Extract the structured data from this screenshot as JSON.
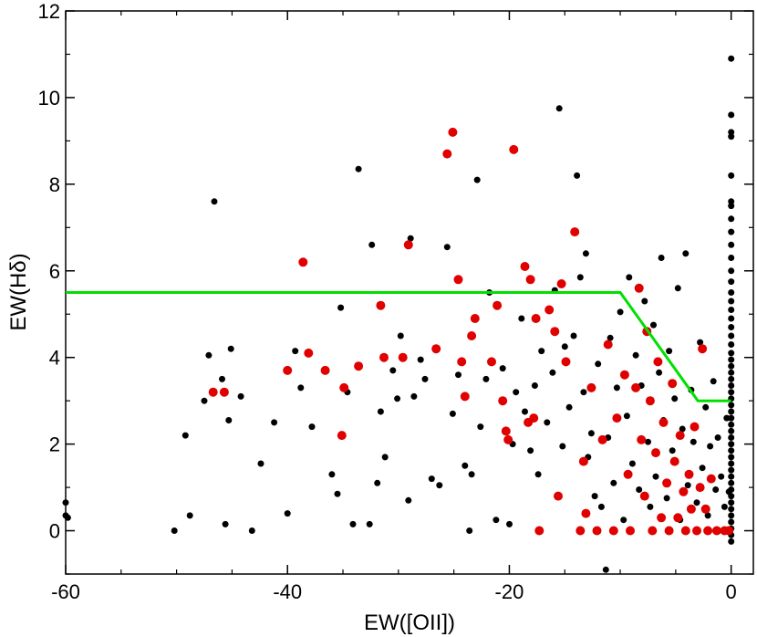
{
  "chart_data": {
    "type": "scatter",
    "xlabel": "EW([OII])",
    "ylabel": "EW(Hδ)",
    "xlim": [
      -60,
      2
    ],
    "ylim": [
      -1,
      12
    ],
    "x_ticks": [
      -60,
      -40,
      -20,
      0
    ],
    "x_tick_labels": [
      "-60",
      "-40",
      "-20",
      "0"
    ],
    "y_ticks": [
      0,
      2,
      4,
      6,
      8,
      10,
      12
    ],
    "y_tick_labels": [
      "0",
      "2",
      "4",
      "6",
      "8",
      "10",
      "12"
    ],
    "x_minor_step": 5,
    "y_minor_step": 1,
    "grid": false,
    "legend": "none",
    "colors": {
      "black_series": "#000000",
      "red_series": "#e00000",
      "boundary_line": "#00e000"
    },
    "boundary_line": [
      [
        -60,
        5.5
      ],
      [
        -10,
        5.5
      ],
      [
        -3,
        3
      ],
      [
        0,
        3
      ]
    ],
    "series": [
      {
        "color": "#000000",
        "marker_size": "small",
        "points": [
          [
            -60,
            0.65
          ],
          [
            -60,
            0.35
          ],
          [
            -59.8,
            0.3
          ],
          [
            -50.2,
            0.0
          ],
          [
            -49.2,
            2.2
          ],
          [
            -48.8,
            0.35
          ],
          [
            -47.5,
            3.0
          ],
          [
            -47.1,
            4.05
          ],
          [
            -46.6,
            7.6
          ],
          [
            -45.9,
            3.5
          ],
          [
            -45.6,
            0.15
          ],
          [
            -45.3,
            2.55
          ],
          [
            -45.1,
            4.2
          ],
          [
            -44.2,
            3.1
          ],
          [
            -43.2,
            0.0
          ],
          [
            -42.4,
            1.55
          ],
          [
            -41.2,
            2.5
          ],
          [
            -40.0,
            0.4
          ],
          [
            -39.3,
            4.15
          ],
          [
            -38.8,
            3.3
          ],
          [
            -37.8,
            2.4
          ],
          [
            -36.0,
            1.3
          ],
          [
            -35.5,
            0.85
          ],
          [
            -35.2,
            5.15
          ],
          [
            -34.6,
            3.2
          ],
          [
            -34.1,
            0.15
          ],
          [
            -33.6,
            8.35
          ],
          [
            -32.6,
            0.15
          ],
          [
            -32.4,
            6.6
          ],
          [
            -31.9,
            1.1
          ],
          [
            -31.6,
            2.75
          ],
          [
            -31.2,
            1.7
          ],
          [
            -30.5,
            3.7
          ],
          [
            -30.1,
            3.05
          ],
          [
            -29.8,
            4.5
          ],
          [
            -29.1,
            0.7
          ],
          [
            -28.9,
            6.75
          ],
          [
            -28.6,
            3.1
          ],
          [
            -28.0,
            3.95
          ],
          [
            -27.6,
            3.5
          ],
          [
            -27.0,
            1.2
          ],
          [
            -26.3,
            1.05
          ],
          [
            -25.6,
            6.55
          ],
          [
            -25.1,
            2.7
          ],
          [
            -24.6,
            3.6
          ],
          [
            -24.0,
            1.5
          ],
          [
            -23.6,
            0.0
          ],
          [
            -23.4,
            1.3
          ],
          [
            -22.9,
            8.1
          ],
          [
            -22.6,
            2.4
          ],
          [
            -22.1,
            3.5
          ],
          [
            -21.8,
            5.5
          ],
          [
            -21.2,
            0.25
          ],
          [
            -20.6,
            3.75
          ],
          [
            -20.0,
            0.15
          ],
          [
            -19.7,
            2.0
          ],
          [
            -19.4,
            3.2
          ],
          [
            -18.9,
            4.9
          ],
          [
            -18.6,
            2.75
          ],
          [
            -18.1,
            1.85
          ],
          [
            -17.7,
            3.35
          ],
          [
            -17.4,
            1.3
          ],
          [
            -17.1,
            4.15
          ],
          [
            -16.6,
            2.5
          ],
          [
            -16.1,
            3.65
          ],
          [
            -15.9,
            5.55
          ],
          [
            -15.5,
            9.75
          ],
          [
            -15.2,
            1.95
          ],
          [
            -15.0,
            4.25
          ],
          [
            -14.6,
            2.85
          ],
          [
            -14.2,
            4.5
          ],
          [
            -13.9,
            8.2
          ],
          [
            -13.6,
            5.85
          ],
          [
            -13.3,
            3.2
          ],
          [
            -13.1,
            6.4
          ],
          [
            -12.9,
            1.7
          ],
          [
            -12.6,
            2.25
          ],
          [
            -12.3,
            0.8
          ],
          [
            -12.0,
            3.85
          ],
          [
            -11.7,
            0.55
          ],
          [
            -11.3,
            -0.9
          ],
          [
            -11.1,
            2.15
          ],
          [
            -10.9,
            4.45
          ],
          [
            -10.6,
            1.1
          ],
          [
            -10.3,
            3.3
          ],
          [
            -10.0,
            5.05
          ],
          [
            -9.7,
            0.25
          ],
          [
            -9.4,
            2.65
          ],
          [
            -9.2,
            5.85
          ],
          [
            -8.9,
            1.55
          ],
          [
            -8.6,
            4.05
          ],
          [
            -8.3,
            0.95
          ],
          [
            -8.1,
            3.35
          ],
          [
            -7.8,
            5.3
          ],
          [
            -7.5,
            2.05
          ],
          [
            -7.3,
            0.55
          ],
          [
            -7.0,
            4.75
          ],
          [
            -6.8,
            1.25
          ],
          [
            -6.5,
            3.65
          ],
          [
            -6.3,
            6.3
          ],
          [
            -6.1,
            2.55
          ],
          [
            -5.8,
            0.75
          ],
          [
            -5.6,
            4.15
          ],
          [
            -5.3,
            1.85
          ],
          [
            -5.1,
            3.05
          ],
          [
            -4.8,
            5.6
          ],
          [
            -4.6,
            0.25
          ],
          [
            -4.4,
            2.35
          ],
          [
            -4.1,
            6.4
          ],
          [
            -3.9,
            1.05
          ],
          [
            -3.6,
            3.25
          ],
          [
            -3.4,
            2.05
          ],
          [
            -3.1,
            0.65
          ],
          [
            -2.8,
            4.35
          ],
          [
            -2.6,
            1.45
          ],
          [
            -2.3,
            2.85
          ],
          [
            -2.1,
            0.35
          ],
          [
            -1.9,
            1.95
          ],
          [
            -1.6,
            3.45
          ],
          [
            -1.4,
            0.95
          ],
          [
            -1.2,
            2.15
          ],
          [
            -0.9,
            1.25
          ],
          [
            -0.6,
            0.55
          ],
          [
            -0.4,
            2.6
          ],
          [
            -0.2,
            0.9
          ],
          [
            0,
            -0.25
          ],
          [
            0,
            -0.1
          ],
          [
            0,
            0.05
          ],
          [
            0,
            0.2
          ],
          [
            0,
            0.35
          ],
          [
            0,
            0.5
          ],
          [
            0,
            0.65
          ],
          [
            0,
            0.8
          ],
          [
            0,
            0.95
          ],
          [
            0,
            1.1
          ],
          [
            0,
            1.25
          ],
          [
            0,
            1.4
          ],
          [
            0,
            1.55
          ],
          [
            0,
            1.7
          ],
          [
            0,
            1.85
          ],
          [
            0,
            2.0
          ],
          [
            0,
            2.15
          ],
          [
            0,
            2.3
          ],
          [
            0,
            2.45
          ],
          [
            0,
            2.6
          ],
          [
            0,
            2.75
          ],
          [
            0,
            2.9
          ],
          [
            0,
            3.05
          ],
          [
            0,
            3.2
          ],
          [
            0,
            3.35
          ],
          [
            0,
            3.5
          ],
          [
            0,
            3.65
          ],
          [
            0,
            3.8
          ],
          [
            0,
            3.95
          ],
          [
            0,
            4.1
          ],
          [
            0,
            4.3
          ],
          [
            0,
            4.5
          ],
          [
            0,
            4.7
          ],
          [
            0,
            4.9
          ],
          [
            0,
            5.1
          ],
          [
            0,
            5.3
          ],
          [
            0,
            5.5
          ],
          [
            0,
            5.75
          ],
          [
            0,
            6.0
          ],
          [
            0,
            6.3
          ],
          [
            0,
            6.6
          ],
          [
            0,
            6.9
          ],
          [
            0,
            7.2
          ],
          [
            0,
            7.5
          ],
          [
            0,
            7.6
          ],
          [
            0,
            8.2
          ],
          [
            0,
            9.1
          ],
          [
            0,
            9.2
          ],
          [
            0,
            9.6
          ],
          [
            0,
            10.9
          ]
        ]
      },
      {
        "color": "#e00000",
        "marker_size": "large",
        "points": [
          [
            -46.7,
            3.2
          ],
          [
            -45.7,
            3.2
          ],
          [
            -40.0,
            3.7
          ],
          [
            -38.6,
            6.2
          ],
          [
            -38.1,
            4.1
          ],
          [
            -36.6,
            3.7
          ],
          [
            -35.1,
            2.2
          ],
          [
            -34.9,
            3.3
          ],
          [
            -33.6,
            3.8
          ],
          [
            -31.6,
            5.2
          ],
          [
            -31.3,
            4.0
          ],
          [
            -29.6,
            4.0
          ],
          [
            -29.1,
            6.6
          ],
          [
            -26.6,
            4.2
          ],
          [
            -25.6,
            8.7
          ],
          [
            -25.1,
            9.2
          ],
          [
            -24.6,
            5.8
          ],
          [
            -24.3,
            3.9
          ],
          [
            -24.0,
            3.1
          ],
          [
            -23.4,
            4.5
          ],
          [
            -23.1,
            4.9
          ],
          [
            -21.6,
            3.9
          ],
          [
            -21.1,
            5.2
          ],
          [
            -20.6,
            3.0
          ],
          [
            -20.3,
            2.3
          ],
          [
            -20.1,
            2.1
          ],
          [
            -19.6,
            8.8
          ],
          [
            -18.6,
            6.1
          ],
          [
            -18.3,
            2.5
          ],
          [
            -18.1,
            5.8
          ],
          [
            -17.8,
            2.6
          ],
          [
            -17.6,
            4.9
          ],
          [
            -17.3,
            0.0
          ],
          [
            -16.4,
            5.1
          ],
          [
            -15.9,
            4.6
          ],
          [
            -15.6,
            0.8
          ],
          [
            -15.3,
            5.7
          ],
          [
            -14.9,
            3.9
          ],
          [
            -14.1,
            6.9
          ],
          [
            -13.6,
            0.0
          ],
          [
            -13.3,
            1.6
          ],
          [
            -13.1,
            0.4
          ],
          [
            -12.6,
            3.3
          ],
          [
            -12.1,
            0.0
          ],
          [
            -11.6,
            2.1
          ],
          [
            -11.1,
            4.3
          ],
          [
            -10.6,
            0.0
          ],
          [
            -10.3,
            2.6
          ],
          [
            -9.6,
            3.6
          ],
          [
            -9.3,
            1.3
          ],
          [
            -9.1,
            0.0
          ],
          [
            -8.6,
            3.3
          ],
          [
            -8.3,
            5.6
          ],
          [
            -8.1,
            2.1
          ],
          [
            -7.8,
            0.8
          ],
          [
            -7.6,
            4.6
          ],
          [
            -7.3,
            3.0
          ],
          [
            -7.1,
            0.0
          ],
          [
            -6.8,
            1.8
          ],
          [
            -6.6,
            3.9
          ],
          [
            -6.3,
            0.3
          ],
          [
            -6.1,
            2.5
          ],
          [
            -5.8,
            1.1
          ],
          [
            -5.6,
            0.0
          ],
          [
            -5.3,
            3.4
          ],
          [
            -5.1,
            1.6
          ],
          [
            -4.8,
            0.3
          ],
          [
            -4.6,
            2.2
          ],
          [
            -4.3,
            0.9
          ],
          [
            -4.1,
            0.0
          ],
          [
            -3.8,
            1.3
          ],
          [
            -3.6,
            0.5
          ],
          [
            -3.3,
            2.4
          ],
          [
            -3.1,
            0.0
          ],
          [
            -2.8,
            1.0
          ],
          [
            -2.6,
            4.2
          ],
          [
            -2.3,
            0.5
          ],
          [
            -2.1,
            0.0
          ],
          [
            -1.8,
            1.2
          ],
          [
            -1.3,
            0.0
          ],
          [
            -0.6,
            0.0
          ],
          [
            -0.2,
            0.0
          ]
        ]
      }
    ]
  }
}
